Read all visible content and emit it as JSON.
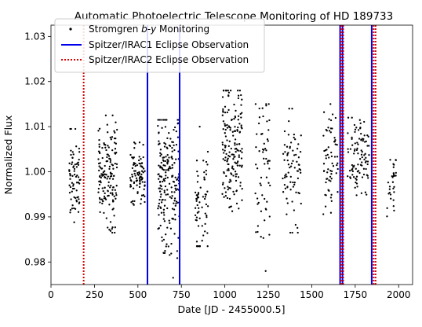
{
  "chart_data": {
    "type": "scatter",
    "title": "Automatic Photoelectric Telescope Monitoring of HD 189733",
    "xlabel": "Date [JD - 2455000.5]",
    "ylabel": "Normalized Flux",
    "xlim": [
      0,
      2080
    ],
    "ylim": [
      0.975,
      1.0325
    ],
    "xticks": [
      0,
      250,
      500,
      750,
      1000,
      1250,
      1500,
      1750,
      2000
    ],
    "yticks": [
      0.98,
      0.99,
      1.0,
      1.01,
      1.02,
      1.03
    ],
    "ytick_labels": [
      "0.98",
      "0.99",
      "1.00",
      "1.01",
      "1.02",
      "1.03"
    ],
    "legend_position": "top-left",
    "grid": false,
    "series": [
      {
        "name": "Stromgren b-y Monitoring",
        "style": "points",
        "color": "#000000",
        "seasons": [
          {
            "x_range": [
              105,
              170
            ],
            "y_range": [
              0.9875,
              1.0095
            ],
            "y_center": 0.999,
            "n": 70
          },
          {
            "x_range": [
              270,
              380
            ],
            "y_range": [
              0.9865,
              1.0125
            ],
            "y_center": 1.0,
            "n": 150
          },
          {
            "x_range": [
              455,
              540
            ],
            "y_range": [
              0.9915,
              1.0065
            ],
            "y_center": 0.999,
            "n": 90
          },
          {
            "x_range": [
              615,
              740
            ],
            "y_range": [
              0.9765,
              1.0115
            ],
            "y_center": 0.998,
            "n": 200
          },
          {
            "x_range": [
              830,
              905
            ],
            "y_range": [
              0.9835,
              1.0115
            ],
            "y_center": 0.992,
            "n": 65
          },
          {
            "x_range": [
              985,
              1100
            ],
            "y_range": [
              0.9855,
              1.018
            ],
            "y_center": 1.006,
            "n": 170
          },
          {
            "x_range": [
              1175,
              1265
            ],
            "y_range": [
              0.978,
              1.015
            ],
            "y_center": 1.0,
            "n": 60
          },
          {
            "x_range": [
              1330,
              1440
            ],
            "y_range": [
              0.9865,
              1.014
            ],
            "y_center": 1.0,
            "n": 75
          },
          {
            "x_range": [
              1565,
              1650
            ],
            "y_range": [
              0.9895,
              1.015
            ],
            "y_center": 1.003,
            "n": 65
          },
          {
            "x_range": [
              1705,
              1830
            ],
            "y_range": [
              0.991,
              1.012
            ],
            "y_center": 1.003,
            "n": 95
          },
          {
            "x_range": [
              1930,
              1985
            ],
            "y_range": [
              0.9885,
              1.0045
            ],
            "y_center": 0.997,
            "n": 30
          }
        ]
      },
      {
        "name": "Spitzer/IRAC1 Eclipse Observation",
        "style": "vertical-line-solid",
        "color": "#0000ee",
        "x": [
          555,
          740,
          1663,
          1677,
          1845
        ]
      },
      {
        "name": "Spitzer/IRAC2 Eclipse Observation",
        "style": "vertical-line-dotted",
        "color": "#dd0000",
        "x": [
          188,
          1668,
          1681,
          1856,
          1867
        ]
      }
    ]
  }
}
